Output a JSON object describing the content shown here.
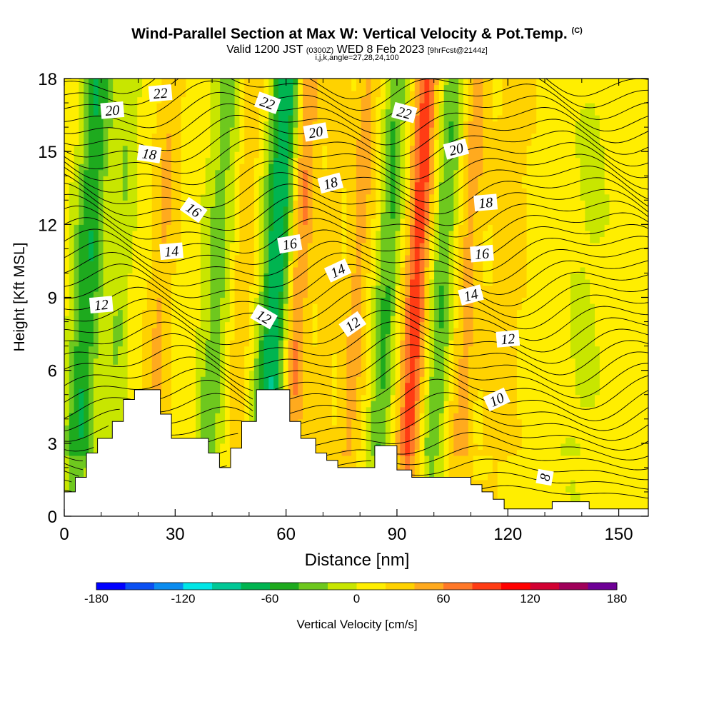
{
  "titles": {
    "main": "Wind-Parallel Section at Max W: Vertical Velocity & Pot.Temp.",
    "main_unit": "(C)",
    "valid_prefix": "Valid 1200 JST",
    "valid_utc": "(0300Z)",
    "valid_date": "WED 8 Feb 2023",
    "forecast": "[9hrFcst@2144z]",
    "params": "i,j,k,angle=27,28,24,100"
  },
  "chart_data": {
    "type": "heatmap",
    "xlabel": "Distance [nm]",
    "ylabel": "Height [Kft MSL]",
    "xlim": [
      0,
      158
    ],
    "ylim": [
      0,
      18
    ],
    "x_ticks": [
      0,
      30,
      60,
      90,
      120,
      150
    ],
    "y_ticks": [
      0,
      3,
      6,
      9,
      12,
      15,
      18
    ],
    "colorbar": {
      "label": "Vertical Velocity [cm/s]",
      "range": [
        -180,
        180
      ],
      "tick_values": [
        -180,
        -120,
        -60,
        0,
        60,
        120,
        180
      ],
      "tick_labels": [
        "-180",
        "-120",
        "-60",
        "0",
        "60",
        "120",
        "180"
      ],
      "colors": [
        "#0000ff",
        "#0a4ff2",
        "#0a8cf0",
        "#00e6e6",
        "#00c896",
        "#00b450",
        "#1eaa1e",
        "#6ec81e",
        "#c8e600",
        "#ffee00",
        "#ffd200",
        "#ffaa1e",
        "#ff7828",
        "#ff3c14",
        "#ff0000",
        "#d20032",
        "#a0005a",
        "#6e0096"
      ]
    },
    "velocity_bands": [
      {
        "x": 5,
        "w": 4,
        "v": -70
      },
      {
        "x": 14,
        "w": 3,
        "v": -30
      },
      {
        "x": 25,
        "w": 3,
        "v": 30
      },
      {
        "x": 40,
        "w": 4,
        "v": -40
      },
      {
        "x": 47,
        "w": 3,
        "v": 25
      },
      {
        "x": 56,
        "w": 4,
        "v": -90
      },
      {
        "x": 62,
        "w": 3,
        "v": 55
      },
      {
        "x": 70,
        "w": 3,
        "v": 20
      },
      {
        "x": 78,
        "w": 3,
        "v": 35
      },
      {
        "x": 86,
        "w": 3,
        "v": -55
      },
      {
        "x": 94,
        "w": 3,
        "v": 80
      },
      {
        "x": 101,
        "w": 3,
        "v": -50
      },
      {
        "x": 108,
        "w": 3,
        "v": 35
      },
      {
        "x": 118,
        "w": 5,
        "v": 20
      },
      {
        "x": 140,
        "w": 6,
        "v": -15
      }
    ],
    "terrain_profile": [
      [
        0,
        1.0
      ],
      [
        3,
        1.0
      ],
      [
        3,
        1.6
      ],
      [
        6,
        1.6
      ],
      [
        6,
        2.6
      ],
      [
        9,
        2.6
      ],
      [
        9,
        3.2
      ],
      [
        13,
        3.2
      ],
      [
        13,
        3.9
      ],
      [
        16,
        3.9
      ],
      [
        16,
        4.8
      ],
      [
        19,
        4.8
      ],
      [
        19,
        5.2
      ],
      [
        26,
        5.2
      ],
      [
        26,
        4.2
      ],
      [
        29,
        4.2
      ],
      [
        29,
        3.2
      ],
      [
        39,
        3.2
      ],
      [
        39,
        2.6
      ],
      [
        42,
        2.6
      ],
      [
        42,
        2.0
      ],
      [
        45,
        2.0
      ],
      [
        45,
        2.8
      ],
      [
        48,
        2.8
      ],
      [
        48,
        3.9
      ],
      [
        52,
        3.9
      ],
      [
        52,
        5.2
      ],
      [
        61,
        5.2
      ],
      [
        61,
        3.9
      ],
      [
        64,
        3.9
      ],
      [
        64,
        3.2
      ],
      [
        68,
        3.2
      ],
      [
        68,
        2.6
      ],
      [
        71,
        2.6
      ],
      [
        71,
        2.3
      ],
      [
        74,
        2.3
      ],
      [
        74,
        2.0
      ],
      [
        84,
        2.0
      ],
      [
        84,
        2.9
      ],
      [
        90,
        2.9
      ],
      [
        90,
        1.9
      ],
      [
        94,
        1.9
      ],
      [
        94,
        1.6
      ],
      [
        110,
        1.6
      ],
      [
        110,
        1.3
      ],
      [
        113,
        1.3
      ],
      [
        113,
        1.0
      ],
      [
        116,
        1.0
      ],
      [
        116,
        0.7
      ],
      [
        119,
        0.7
      ],
      [
        119,
        0.3
      ],
      [
        132,
        0.3
      ],
      [
        132,
        0.6
      ],
      [
        142,
        0.6
      ],
      [
        142,
        0.3
      ],
      [
        158,
        0.3
      ]
    ],
    "contour_values": [
      8,
      10,
      12,
      14,
      16,
      18,
      20,
      22
    ],
    "contour_labels": [
      {
        "text": "22",
        "x": 26,
        "y": 17.4,
        "angle": -5
      },
      {
        "text": "20",
        "x": 13,
        "y": 16.7,
        "angle": -5
      },
      {
        "text": "18",
        "x": 23,
        "y": 14.9,
        "angle": 8
      },
      {
        "text": "16",
        "x": 35,
        "y": 12.6,
        "angle": 35
      },
      {
        "text": "14",
        "x": 29,
        "y": 10.9,
        "angle": -5
      },
      {
        "text": "12",
        "x": 10,
        "y": 8.7,
        "angle": -5
      },
      {
        "text": "22",
        "x": 55,
        "y": 17.0,
        "angle": 20
      },
      {
        "text": "20",
        "x": 68,
        "y": 15.8,
        "angle": -10
      },
      {
        "text": "18",
        "x": 72,
        "y": 13.7,
        "angle": -15
      },
      {
        "text": "16",
        "x": 61,
        "y": 11.2,
        "angle": -10
      },
      {
        "text": "14",
        "x": 74,
        "y": 10.1,
        "angle": -25
      },
      {
        "text": "12",
        "x": 54,
        "y": 8.2,
        "angle": 30
      },
      {
        "text": "12",
        "x": 78,
        "y": 7.9,
        "angle": -35
      },
      {
        "text": "22",
        "x": 92,
        "y": 16.6,
        "angle": 15
      },
      {
        "text": "20",
        "x": 106,
        "y": 15.1,
        "angle": -15
      },
      {
        "text": "18",
        "x": 114,
        "y": 12.9,
        "angle": -5
      },
      {
        "text": "16",
        "x": 113,
        "y": 10.8,
        "angle": -5
      },
      {
        "text": "14",
        "x": 110,
        "y": 9.1,
        "angle": -15
      },
      {
        "text": "12",
        "x": 120,
        "y": 7.3,
        "angle": -5
      },
      {
        "text": "10",
        "x": 117,
        "y": 4.8,
        "angle": -25
      },
      {
        "text": "8",
        "x": 130,
        "y": 1.6,
        "angle": -80
      }
    ]
  }
}
